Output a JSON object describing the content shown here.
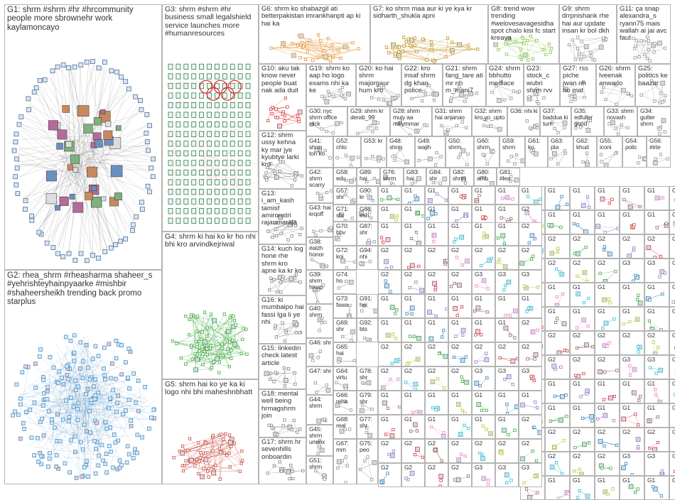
{
  "graph_title": "",
  "colors": {
    "edge": "#8a8a8a",
    "border": "#b5b5b5",
    "G2": "#1f77b4",
    "G3": "#2e7d4f",
    "G4": "#2ca02c",
    "G5": "#c0392b",
    "G6": "#e08a1e",
    "G7": "#b8860b",
    "G8": "#7dbb3c",
    "G9": "#8c8c8c",
    "G10": "#d62728"
  },
  "groups": [
    {
      "id": "G1",
      "label": "G1: shrm #shrm #hr #hrcommunity people more sbrownehr work kaylamoncayo"
    },
    {
      "id": "G2",
      "label": "G2: rhea_shrm #rheasharma shaheer_s #yehrishteyhainpyaarke #mishbir #shaheersheikh trending back promo starplus"
    },
    {
      "id": "G3",
      "label": "G3: shrm #shrm #hr business small legalshield service launches more #humanresources"
    },
    {
      "id": "G4",
      "label": "G4: shrm ki hai ko kr ho nhi bhi kro arvindkejriwal"
    },
    {
      "id": "G5",
      "label": "G5: shrm hai ko ye ka ki logo nhi bhi maheshnbhatt"
    },
    {
      "id": "G6",
      "label": "G6: shrm ko shabazgil ati betterpakistan imrankhanpti ap ki hai ka"
    },
    {
      "id": "G7",
      "label": "G7: ko shrm maa aur ki ye kya kr sidharth_shukla apni"
    },
    {
      "id": "G8",
      "label": "G8: trend wow trending #welovesavagesidha spot chalo kisi fc start kreaya"
    },
    {
      "id": "G9",
      "label": "G9: shrm drrpnishank rhe hai aur update insan kr bol dkh"
    },
    {
      "id": "G11",
      "label": "G11: ça snap alexandra_s ryann75 mais wallah ai jai avc faut"
    },
    {
      "id": "G10",
      "label": "G10: aku tak know never people buat nak ada duit"
    },
    {
      "id": "G12",
      "label": "G12: shrm ussy kehna ky mar jye kyubtye larki kro"
    },
    {
      "id": "G13",
      "label": "G13: i_am_kash tamisf amironstri rajaumaraja"
    },
    {
      "id": "G14",
      "label": "G14: kuch log hone rhe shrm kro apne ka kr ko"
    },
    {
      "id": "G15",
      "label": "G15: linkedin check latest article"
    },
    {
      "id": "G16",
      "label": "G16: ki mumbaipo hai fassi lga li ye nhi"
    },
    {
      "id": "G17",
      "label": "G17: shrm hr sevenhills onboardin"
    },
    {
      "id": "G18",
      "label": "G18: mental well being hrmagshrm join"
    },
    {
      "id": "G19",
      "label": "G19: shrm ko aap ho logo exams nhi ka ke"
    },
    {
      "id": "G20",
      "label": "G20: ko hai shrm majorgaur hum kro"
    },
    {
      "id": "G22",
      "label": "G22: kro insaf shrm dg khan police"
    },
    {
      "id": "G21",
      "label": "G21: shrm fang_tare ati mr nh m_mani7"
    },
    {
      "id": "G24",
      "label": "G24: shrm bbhutto mediace"
    },
    {
      "id": "G23",
      "label": "G23: stock_c wubri shrm rvv"
    },
    {
      "id": "G27",
      "label": "G27: rss piche jwan nh ho mat"
    },
    {
      "id": "G26",
      "label": "G26: shrm lveenak anwarlo"
    },
    {
      "id": "G25",
      "label": "G25: politics ke baazar"
    },
    {
      "id": "G30",
      "label": "G30: nyc shrm office click"
    },
    {
      "id": "G29",
      "label": "G29: shrm kr derab_99"
    },
    {
      "id": "G28",
      "label": "G28: shrm mujy aa millymmar"
    },
    {
      "id": "G31",
      "label": "G31: shrm hai anjanao"
    },
    {
      "id": "G32",
      "label": "G32: shrm kro yo_upto"
    },
    {
      "id": "G36",
      "label": "G36: nhi ki"
    },
    {
      "id": "G37",
      "label": "G37: baddua ki tum"
    },
    {
      "id": "G35",
      "label": "G35: edfuller good"
    },
    {
      "id": "G33",
      "label": "G33: shrm novash"
    },
    {
      "id": "G34",
      "label": "G34: gutter shrm"
    },
    {
      "id": "G41",
      "label": "G41: shrm toh ko"
    },
    {
      "id": "G52",
      "label": "G52: chlo"
    },
    {
      "id": "G53",
      "label": "G53: kr"
    },
    {
      "id": "G48",
      "label": "G48: shrm"
    },
    {
      "id": "G49",
      "label": "G49: wajih"
    },
    {
      "id": "G50",
      "label": "G50: shrm"
    },
    {
      "id": "G60",
      "label": "G60: shrm"
    },
    {
      "id": "G59",
      "label": "G59: shrm"
    },
    {
      "id": "G61",
      "label": "G61: ko"
    },
    {
      "id": "G63",
      "label": "G63: pta"
    },
    {
      "id": "G62",
      "label": "G62: khud"
    },
    {
      "id": "G55",
      "label": "G55: iconi"
    },
    {
      "id": "G54",
      "label": "G54: polic"
    },
    {
      "id": "G56",
      "label": "G56: #irte"
    },
    {
      "id": "G42",
      "label": "G42: shrm scarry"
    },
    {
      "id": "G58",
      "label": "G58: edu"
    },
    {
      "id": "G89",
      "label": "G89: hai"
    },
    {
      "id": "G76",
      "label": "G76: shrm"
    },
    {
      "id": "G83",
      "label": "G83: hai"
    },
    {
      "id": "G84",
      "label": "G84: shr"
    },
    {
      "id": "G82",
      "label": "G82: shrm"
    },
    {
      "id": "G80",
      "label": "G80: amb"
    },
    {
      "id": "G81",
      "label": "G81: #lea"
    },
    {
      "id": "G43",
      "label": "G43: hai krqoff"
    },
    {
      "id": "G57",
      "label": "G57: shr"
    },
    {
      "id": "G90",
      "label": "G90: kr"
    },
    {
      "id": "G71",
      "label": "G71: shr"
    },
    {
      "id": "G88",
      "label": "G88: #sh"
    },
    {
      "id": "G38",
      "label": "G38: #alzh honor"
    },
    {
      "id": "G70",
      "label": "G70: bbv"
    },
    {
      "id": "G87",
      "label": "G87: shr"
    },
    {
      "id": "G39",
      "label": "G39: shrm hinap"
    },
    {
      "id": "G72",
      "label": "G72: koi"
    },
    {
      "id": "G94",
      "label": "G94: nhi"
    },
    {
      "id": "G74",
      "label": "G74: ho"
    },
    {
      "id": "G40",
      "label": "G40: shrm"
    },
    {
      "id": "G73",
      "label": "G73: fawa"
    },
    {
      "id": "G91",
      "label": "G91: hai"
    },
    {
      "id": "G46",
      "label": "G46: shr"
    },
    {
      "id": "G69",
      "label": "G69: shr"
    },
    {
      "id": "G92",
      "label": "G92: bts"
    },
    {
      "id": "G47",
      "label": "G47: shr"
    },
    {
      "id": "G65",
      "label": "G65: hai"
    },
    {
      "id": "G44",
      "label": "G44: shrm"
    },
    {
      "id": "G64",
      "label": "G64: virtu"
    },
    {
      "id": "G78",
      "label": "G78: shr"
    },
    {
      "id": "G66",
      "label": "G66: reha"
    },
    {
      "id": "G79",
      "label": "G79: shr"
    },
    {
      "id": "G45",
      "label": "G45: shrm ummx"
    },
    {
      "id": "G68",
      "label": "G68: real"
    },
    {
      "id": "G77",
      "label": "G77: shr"
    },
    {
      "id": "G51",
      "label": "G51: shrm"
    },
    {
      "id": "G67",
      "label": "G67: mm"
    },
    {
      "id": "G75",
      "label": "G75: peo"
    }
  ],
  "tiny_labels": [
    "G1",
    "G1",
    "G1",
    "G1",
    "G1",
    "G1",
    "G1",
    "G1",
    "G1",
    "G1",
    "G1",
    "G1",
    "G1",
    "G2",
    "G2",
    "G2",
    "G2",
    "G2",
    "G2",
    "G2",
    "G2",
    "G2",
    "G2",
    "G2",
    "G2",
    "G3",
    "G3",
    "G3"
  ]
}
